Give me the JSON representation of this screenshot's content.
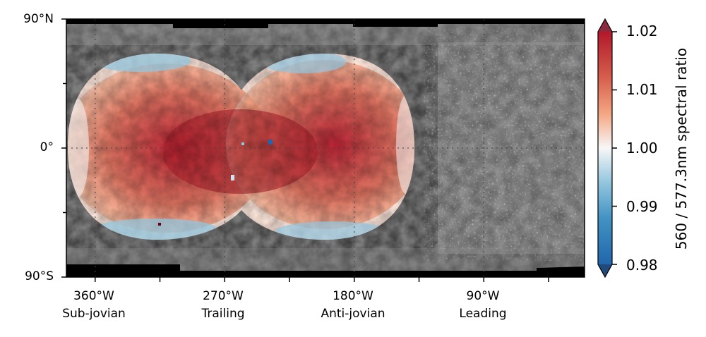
{
  "map": {
    "y_ticks": [
      {
        "label": "90°N",
        "lat": 90
      },
      {
        "label": "0°",
        "lat": 0
      },
      {
        "label": "90°S",
        "lat": -90
      }
    ],
    "x_ticks": [
      {
        "lon": 360,
        "line1": "360°W",
        "line2": "Sub-jovian"
      },
      {
        "lon": 270,
        "line1": "270°W",
        "line2": "Trailing"
      },
      {
        "lon": 180,
        "line1": "180°W",
        "line2": "Anti-jovian"
      },
      {
        "lon": 90,
        "line1": "90°W",
        "line2": "Leading"
      }
    ],
    "minor_x_ticks": [
      315,
      225,
      135,
      45
    ],
    "minor_y_ticks": [
      45,
      -45
    ],
    "lon_range": [
      380,
      20
    ],
    "lat_range": [
      -90,
      90
    ],
    "grid": true,
    "grid_style": "dotted",
    "basemap": "grayscale surface mosaic",
    "overlay_coverage": "two overlapping circular patches centered near 325°W and 190°W, spanning about 70°N to 65°S"
  },
  "colorbar": {
    "label": "560 / 577.3nm spectral ratio",
    "min": 0.98,
    "max": 1.02,
    "ticks": [
      "1.02",
      "1.01",
      "1.00",
      "0.99",
      "0.98"
    ],
    "tick_values": [
      1.02,
      1.01,
      1.0,
      0.99,
      0.98
    ],
    "colormap": "RdBu_r",
    "extend": "both",
    "colors": {
      "low": "#2f6aa8",
      "mid": "#f5f2ef",
      "high": "#b22b2f",
      "ext_low": "#1f4a7a",
      "ext_high": "#8c2a3e"
    }
  }
}
